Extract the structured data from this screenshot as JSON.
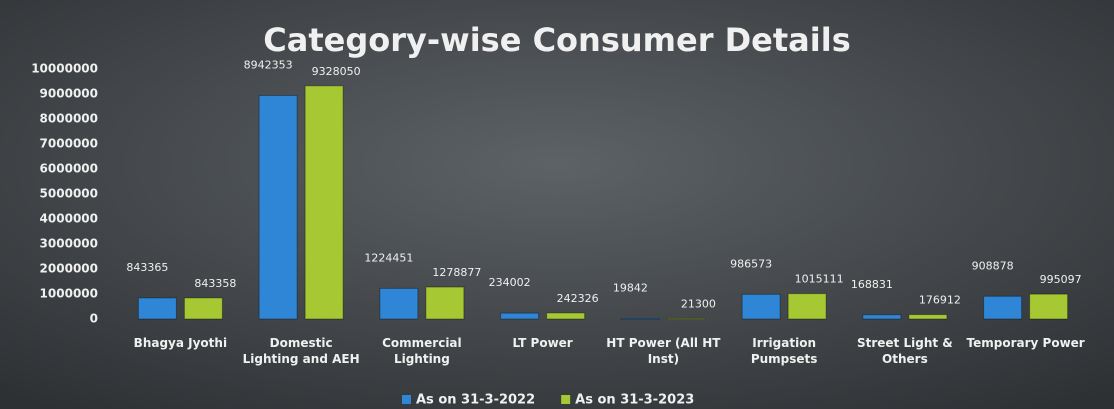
{
  "chart_data": {
    "type": "bar",
    "title": "Category-wise Consumer Details",
    "categories": [
      "Bhagya Jyothi",
      "Domestic Lighting and AEH",
      "Commercial Lighting",
      "LT Power",
      "HT Power (All HT Inst)",
      "Irrigation Pumpsets",
      "Street Light & Others",
      "Temporary Power"
    ],
    "series": [
      {
        "name": "As on 31-3-2022",
        "color": "#2f86d6",
        "values": [
          843365,
          8942353,
          1224451,
          234002,
          19842,
          986573,
          168831,
          908878
        ]
      },
      {
        "name": "As on 31-3-2023",
        "color": "#a6c832",
        "values": [
          843358,
          9328050,
          1278877,
          242326,
          21300,
          1015111,
          176912,
          995097
        ]
      }
    ],
    "ylim": [
      0,
      10000000
    ],
    "yticks": [
      0,
      1000000,
      2000000,
      3000000,
      4000000,
      5000000,
      6000000,
      7000000,
      8000000,
      9000000,
      10000000
    ],
    "legend": "bottom"
  }
}
